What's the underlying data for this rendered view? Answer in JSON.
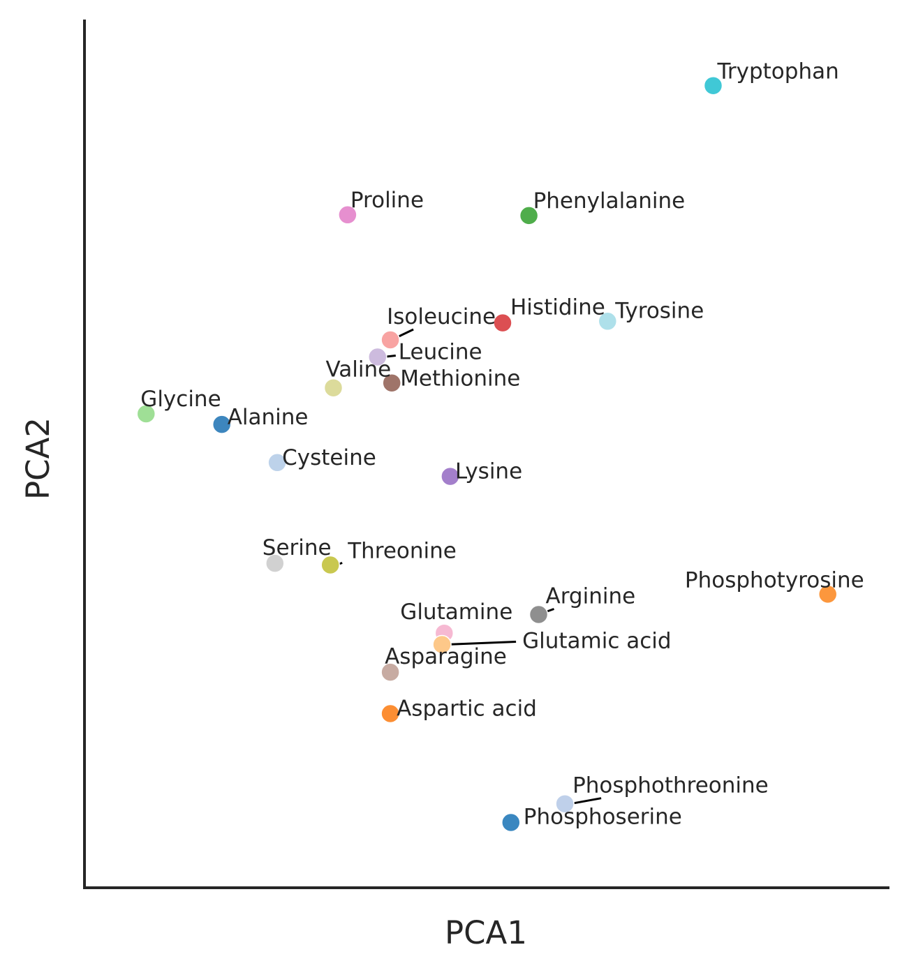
{
  "chart_data": {
    "type": "scatter",
    "xlabel": "PCA1",
    "ylabel": "PCA2",
    "xlim": [
      0,
      100
    ],
    "ylim": [
      0,
      100
    ],
    "ticks_visible": false,
    "grid": false,
    "legend": "none",
    "axis_color": "#262626",
    "points": [
      {
        "name": "Tryptophan",
        "x": 80.2,
        "y": 95.3,
        "color": "#40c8d6"
      },
      {
        "name": "Proline",
        "x": 31.4,
        "y": 79.4,
        "color": "#e68fcf"
      },
      {
        "name": "Phenylalanine",
        "x": 55.6,
        "y": 79.3,
        "color": "#4fad4b"
      },
      {
        "name": "Histidine",
        "x": 52.1,
        "y": 66.1,
        "color": "#dc4f52"
      },
      {
        "name": "Tyrosine",
        "x": 66.1,
        "y": 66.3,
        "color": "#aee0ea"
      },
      {
        "name": "Isoleucine",
        "x": 37.1,
        "y": 64.0,
        "color": "#f8a3a2"
      },
      {
        "name": "Leucine",
        "x": 35.4,
        "y": 61.9,
        "color": "#cdbbde"
      },
      {
        "name": "Methionine",
        "x": 37.3,
        "y": 58.7,
        "color": "#9f7469"
      },
      {
        "name": "Valine",
        "x": 29.5,
        "y": 58.1,
        "color": "#dcdb9b"
      },
      {
        "name": "Glycine",
        "x": 4.5,
        "y": 54.9,
        "color": "#9fdf96"
      },
      {
        "name": "Alanine",
        "x": 14.6,
        "y": 53.6,
        "color": "#3d86be"
      },
      {
        "name": "Cysteine",
        "x": 22.0,
        "y": 48.9,
        "color": "#bdd2ea"
      },
      {
        "name": "Lysine",
        "x": 45.1,
        "y": 47.2,
        "color": "#a37fcb"
      },
      {
        "name": "Serine",
        "x": 21.7,
        "y": 36.5,
        "color": "#d1d1d1"
      },
      {
        "name": "Threonine",
        "x": 29.1,
        "y": 36.3,
        "color": "#c9c850"
      },
      {
        "name": "Phosphotyrosine",
        "x": 95.5,
        "y": 32.7,
        "color": "#fc973d"
      },
      {
        "name": "Arginine",
        "x": 56.9,
        "y": 30.2,
        "color": "#8f8f8f"
      },
      {
        "name": "Glutamine",
        "x": 44.3,
        "y": 27.9,
        "color": "#f6b9d2"
      },
      {
        "name": "Glutamic acid",
        "x": 44.0,
        "y": 26.5,
        "color": "#fdc889"
      },
      {
        "name": "Asparagine",
        "x": 37.1,
        "y": 23.1,
        "color": "#c7aba2"
      },
      {
        "name": "Aspartic acid",
        "x": 37.1,
        "y": 18.0,
        "color": "#fc8e33"
      },
      {
        "name": "Phosphothreonine",
        "x": 60.4,
        "y": 6.9,
        "color": "#bfd0ea"
      },
      {
        "name": "Phosphoserine",
        "x": 53.2,
        "y": 4.6,
        "color": "#3a87c0"
      }
    ]
  }
}
